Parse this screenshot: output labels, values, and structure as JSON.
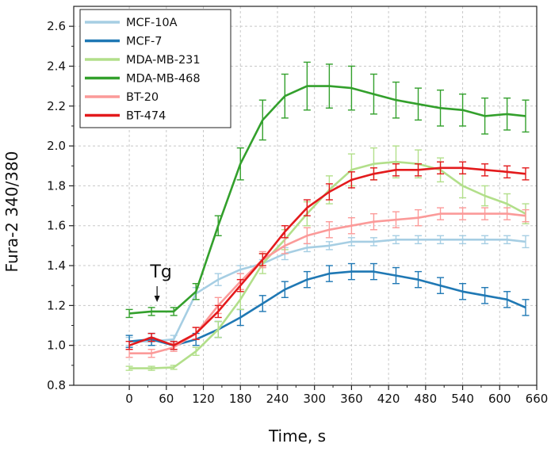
{
  "chart_data": {
    "type": "line",
    "xlabel": "Time, s",
    "ylabel": "Fura-2 340/380",
    "xlim": [
      -90,
      660
    ],
    "ylim": [
      0.8,
      2.7
    ],
    "xticks": [
      0,
      60,
      120,
      180,
      240,
      300,
      360,
      420,
      480,
      540,
      600,
      660
    ],
    "yticks": [
      0.8,
      1.0,
      1.2,
      1.4,
      1.6,
      1.8,
      2.0,
      2.2,
      2.4,
      2.6
    ],
    "grid": true,
    "legend_position": "top-left",
    "annotation": {
      "text": "Tg",
      "x": 45,
      "y": 1.17
    },
    "x": [
      0,
      36,
      72,
      108,
      144,
      180,
      216,
      252,
      288,
      324,
      360,
      396,
      432,
      468,
      504,
      540,
      576,
      612,
      642
    ],
    "series": [
      {
        "name": "MCF-10A",
        "color": "#a6cee3",
        "values": [
          1.02,
          1.02,
          1.03,
          1.26,
          1.33,
          1.38,
          1.41,
          1.46,
          1.49,
          1.5,
          1.52,
          1.52,
          1.53,
          1.53,
          1.53,
          1.53,
          1.53,
          1.53,
          1.52
        ],
        "errors": [
          0.02,
          0.02,
          0.02,
          0.03,
          0.03,
          0.02,
          0.02,
          0.03,
          0.02,
          0.02,
          0.02,
          0.02,
          0.02,
          0.02,
          0.02,
          0.02,
          0.02,
          0.02,
          0.03
        ]
      },
      {
        "name": "MCF-7",
        "color": "#1f78b4",
        "values": [
          1.02,
          1.03,
          1.0,
          1.03,
          1.08,
          1.14,
          1.21,
          1.28,
          1.33,
          1.36,
          1.37,
          1.37,
          1.35,
          1.33,
          1.3,
          1.27,
          1.25,
          1.23,
          1.19
        ],
        "errors": [
          0.03,
          0.03,
          0.02,
          0.03,
          0.04,
          0.04,
          0.04,
          0.04,
          0.04,
          0.04,
          0.04,
          0.04,
          0.04,
          0.04,
          0.04,
          0.04,
          0.04,
          0.04,
          0.04
        ]
      },
      {
        "name": "MDA-MB-231",
        "color": "#b2df8a",
        "values": [
          0.885,
          0.885,
          0.89,
          0.97,
          1.08,
          1.23,
          1.41,
          1.53,
          1.66,
          1.78,
          1.88,
          1.91,
          1.92,
          1.91,
          1.88,
          1.8,
          1.75,
          1.71,
          1.66
        ],
        "errors": [
          0.01,
          0.01,
          0.01,
          0.02,
          0.04,
          0.05,
          0.05,
          0.05,
          0.06,
          0.07,
          0.08,
          0.08,
          0.08,
          0.07,
          0.06,
          0.06,
          0.05,
          0.05,
          0.05
        ]
      },
      {
        "name": "MDA-MB-468",
        "color": "#33a02c",
        "values": [
          1.16,
          1.17,
          1.17,
          1.27,
          1.6,
          1.91,
          2.13,
          2.25,
          2.3,
          2.3,
          2.29,
          2.26,
          2.23,
          2.21,
          2.19,
          2.18,
          2.15,
          2.16,
          2.15
        ],
        "errors": [
          0.02,
          0.02,
          0.02,
          0.04,
          0.05,
          0.08,
          0.1,
          0.11,
          0.12,
          0.11,
          0.11,
          0.1,
          0.09,
          0.08,
          0.09,
          0.08,
          0.09,
          0.08,
          0.08
        ]
      },
      {
        "name": "BT-20",
        "color": "#fb9a99",
        "values": [
          0.96,
          0.96,
          0.99,
          1.06,
          1.2,
          1.32,
          1.43,
          1.5,
          1.55,
          1.58,
          1.6,
          1.62,
          1.63,
          1.64,
          1.66,
          1.66,
          1.66,
          1.66,
          1.65
        ],
        "errors": [
          0.02,
          0.02,
          0.02,
          0.03,
          0.04,
          0.04,
          0.04,
          0.04,
          0.04,
          0.04,
          0.04,
          0.04,
          0.04,
          0.04,
          0.03,
          0.03,
          0.03,
          0.03,
          0.03
        ]
      },
      {
        "name": "BT-474",
        "color": "#e31a1c",
        "values": [
          1.0,
          1.04,
          1.0,
          1.06,
          1.17,
          1.3,
          1.43,
          1.57,
          1.69,
          1.77,
          1.83,
          1.86,
          1.88,
          1.88,
          1.89,
          1.89,
          1.88,
          1.87,
          1.86
        ],
        "errors": [
          0.02,
          0.02,
          0.02,
          0.03,
          0.03,
          0.03,
          0.03,
          0.03,
          0.04,
          0.04,
          0.04,
          0.03,
          0.03,
          0.03,
          0.03,
          0.03,
          0.03,
          0.03,
          0.03
        ]
      }
    ]
  }
}
